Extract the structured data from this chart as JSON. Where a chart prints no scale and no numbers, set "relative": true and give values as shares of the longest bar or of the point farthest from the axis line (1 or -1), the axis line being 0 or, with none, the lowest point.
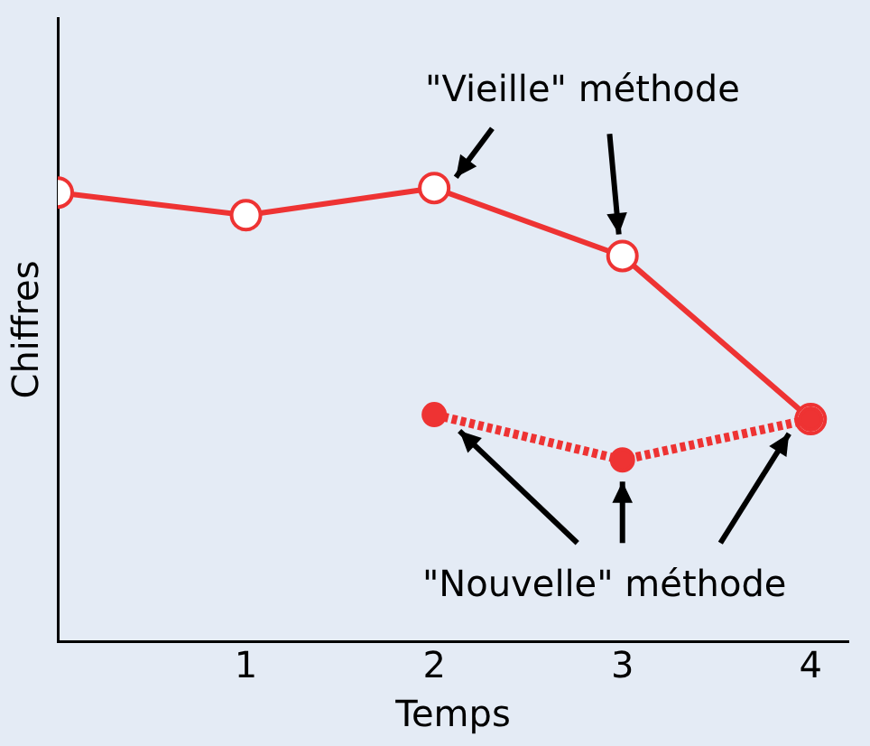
{
  "chart_data": {
    "type": "line",
    "relative": true,
    "xlabel": "Temps",
    "ylabel": "Chiffres",
    "xlim": [
      0,
      4.2
    ],
    "xticks": [
      1,
      2,
      3,
      4
    ],
    "grid": false,
    "legend": false,
    "marker": "circle",
    "annotations": [
      "\"Vieille\" méthode",
      "\"Nouvelle\" méthode"
    ],
    "series": [
      {
        "color": "#ee3333",
        "line_style": "solid",
        "x": [
          0,
          1,
          2,
          3,
          4
        ],
        "values": [
          0.99,
          0.94,
          1,
          0.85,
          0.49
        ]
      },
      {
        "color": "#ee3333",
        "line_style": "dotted",
        "x": [
          2,
          3,
          4
        ],
        "values": [
          0.5,
          0.4,
          0.49
        ]
      }
    ]
  }
}
